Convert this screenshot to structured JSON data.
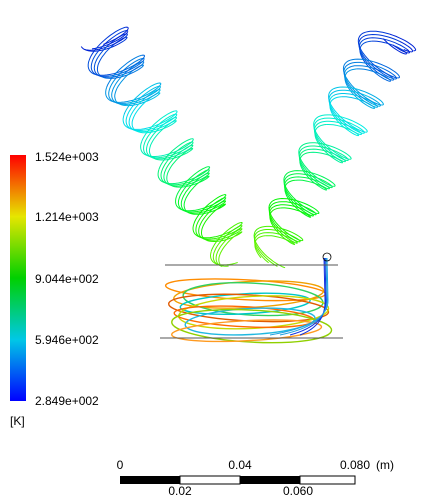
{
  "legend": {
    "labels": [
      "1.524e+003",
      "1.214e+003",
      "9.044e+002",
      "5.946e+002",
      "2.849e+002"
    ],
    "unit": "[K]"
  },
  "scale_bar": {
    "top_labels": [
      "0",
      "0.04",
      "0.080"
    ],
    "unit": "(m)",
    "bottom_labels": [
      "0.02",
      "0.060"
    ]
  }
}
